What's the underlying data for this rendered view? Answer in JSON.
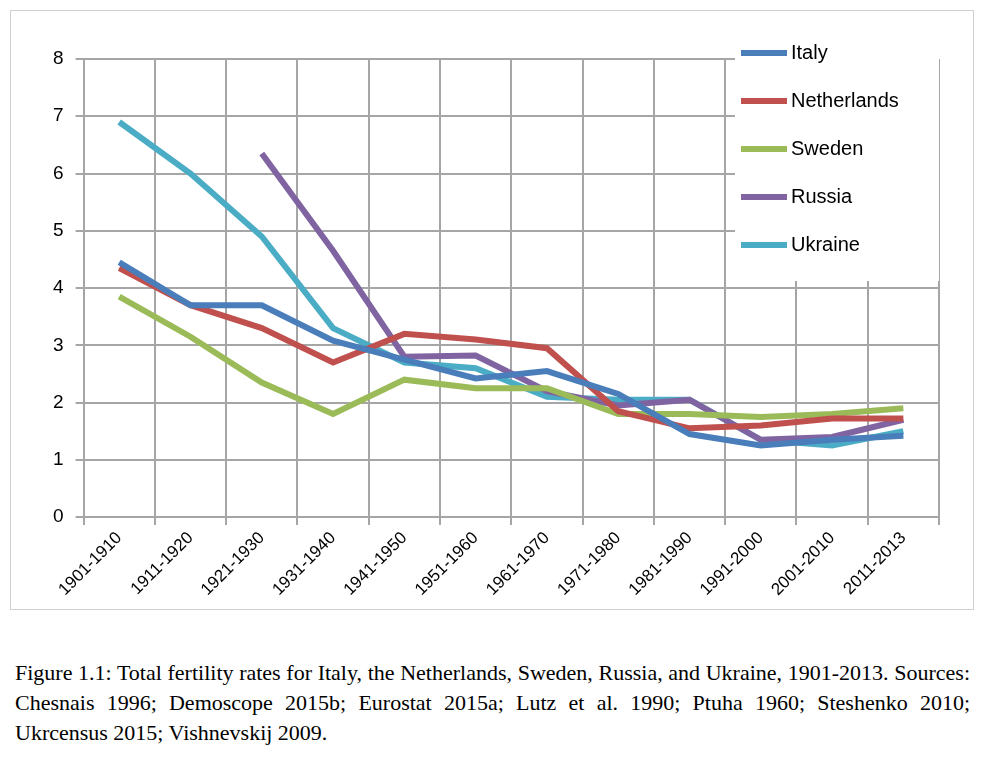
{
  "chart_data": {
    "type": "line",
    "caption": "Figure 1.1: Total fertility rates for Italy, the Netherlands, Sweden, Russia, and Ukraine, 1901-2013. Sources: Chesnais 1996; Demoscope 2015b; Eurostat 2015a; Lutz et al. 1990; Ptuha 1960; Steshenko 2010; Ukrcensus 2015; Vishnevskij 2009.",
    "categories": [
      "1901-1910",
      "1911-1920",
      "1921-1930",
      "1931-1940",
      "1941-1950",
      "1951-1960",
      "1961-1970",
      "1971-1980",
      "1981-1990",
      "1991-2000",
      "2001-2010",
      "2011-2013"
    ],
    "series": [
      {
        "name": "Italy",
        "color": "#4a7ebb",
        "values": [
          4.45,
          3.7,
          3.7,
          3.08,
          2.75,
          2.42,
          2.55,
          2.15,
          1.45,
          1.25,
          1.35,
          1.42
        ]
      },
      {
        "name": "Netherlands",
        "color": "#c0504d",
        "values": [
          4.35,
          3.7,
          3.3,
          2.7,
          3.2,
          3.1,
          2.95,
          1.85,
          1.55,
          1.6,
          1.72,
          1.72
        ]
      },
      {
        "name": "Sweden",
        "color": "#9bbb59",
        "values": [
          3.85,
          3.15,
          2.35,
          1.8,
          2.4,
          2.25,
          2.25,
          1.8,
          1.8,
          1.75,
          1.8,
          1.9
        ]
      },
      {
        "name": "Russia",
        "color": "#8064a2",
        "values": [
          null,
          null,
          6.35,
          4.65,
          2.8,
          2.82,
          2.2,
          1.95,
          2.05,
          1.35,
          1.4,
          1.7
        ]
      },
      {
        "name": "Ukraine",
        "color": "#4bacc6",
        "values": [
          6.9,
          6.0,
          4.9,
          3.3,
          2.7,
          2.6,
          2.1,
          2.05,
          2.05,
          1.35,
          1.25,
          1.5
        ]
      }
    ],
    "ylim": [
      0,
      8
    ],
    "yticks": [
      0,
      1,
      2,
      3,
      4,
      5,
      6,
      7,
      8
    ],
    "grid": true,
    "legend": "upper right"
  }
}
